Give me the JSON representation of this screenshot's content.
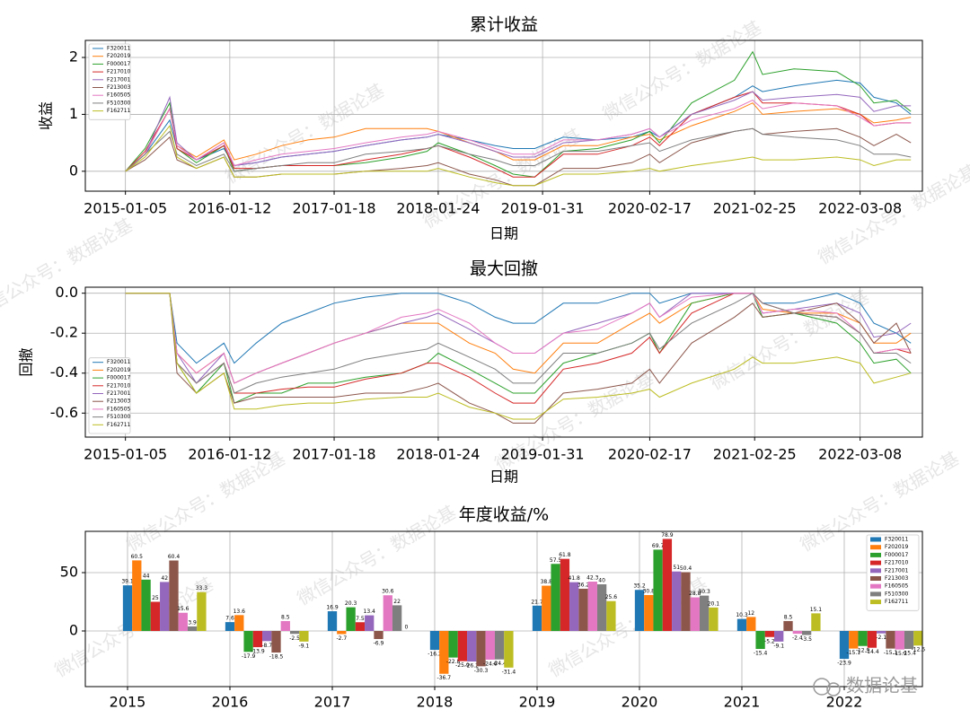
{
  "watermark": "微信公众号：数据论基",
  "logo_text": "数据论基",
  "chart_data": [
    {
      "type": "line",
      "title": "累计收益",
      "xlabel": "日期",
      "ylabel": "收益",
      "legend": "upper left",
      "grid": true,
      "x": [
        "2015-01-05",
        "2015-03-16",
        "2015-06-12",
        "2015-07-08",
        "2015-09-15",
        "2015-12-22",
        "2016-01-28",
        "2016-04-15",
        "2016-07-15",
        "2016-10-17",
        "2017-01-18",
        "2017-05-10",
        "2017-09-15",
        "2017-12-15",
        "2018-01-24",
        "2018-05-15",
        "2018-08-15",
        "2018-10-18",
        "2019-01-03",
        "2019-04-15",
        "2019-08-15",
        "2019-12-15",
        "2020-02-17",
        "2020-03-23",
        "2020-07-15",
        "2020-12-15",
        "2021-02-18",
        "2021-03-25",
        "2021-07-15",
        "2021-12-15",
        "2022-03-08",
        "2022-04-26",
        "2022-07-15",
        "2022-09-05"
      ],
      "xlim": [
        "2014-08-15",
        "2022-10-16"
      ],
      "xticks": [
        "2015-01-05",
        "2016-01-12",
        "2017-01-18",
        "2018-01-24",
        "2019-01-31",
        "2020-02-17",
        "2021-02-25",
        "2022-03-08"
      ],
      "ylim": [
        -0.35,
        2.3
      ],
      "yticks": [
        0,
        1,
        2
      ],
      "series": [
        {
          "name": "F320011",
          "color": "#1f77b4",
          "values": [
            0,
            0.3,
            0.9,
            0.4,
            0.2,
            0.4,
            0.1,
            0.15,
            0.25,
            0.3,
            0.35,
            0.45,
            0.55,
            0.6,
            0.65,
            0.55,
            0.45,
            0.4,
            0.4,
            0.6,
            0.55,
            0.6,
            0.7,
            0.6,
            1.0,
            1.3,
            1.5,
            1.4,
            1.5,
            1.6,
            1.55,
            1.3,
            1.2,
            1.0
          ]
        },
        {
          "name": "F202019",
          "color": "#ff7f0e",
          "values": [
            0,
            0.3,
            1.1,
            0.45,
            0.25,
            0.55,
            0.2,
            0.3,
            0.45,
            0.55,
            0.6,
            0.75,
            0.75,
            0.75,
            0.7,
            0.5,
            0.35,
            0.2,
            0.2,
            0.45,
            0.45,
            0.6,
            0.65,
            0.55,
            0.8,
            1.05,
            1.2,
            1.0,
            1.05,
            1.1,
            1.0,
            0.85,
            0.9,
            0.95
          ]
        },
        {
          "name": "F000017",
          "color": "#2ca02c",
          "values": [
            0,
            0.4,
            1.2,
            0.4,
            0.15,
            0.45,
            0,
            0.05,
            0.1,
            0.1,
            0.1,
            0.15,
            0.25,
            0.35,
            0.5,
            0.3,
            0.1,
            -0.05,
            -0.1,
            0.35,
            0.4,
            0.55,
            0.7,
            0.5,
            1.2,
            1.6,
            2.1,
            1.7,
            1.8,
            1.75,
            1.5,
            1.2,
            1.25,
            1.05
          ]
        },
        {
          "name": "F217010",
          "color": "#d62728",
          "values": [
            0,
            0.35,
            1.1,
            0.4,
            0.2,
            0.45,
            0.05,
            0.05,
            0.1,
            0.1,
            0.1,
            0.2,
            0.3,
            0.4,
            0.45,
            0.25,
            0.05,
            -0.1,
            -0.1,
            0.3,
            0.3,
            0.45,
            0.6,
            0.45,
            1.0,
            1.3,
            1.4,
            1.2,
            1.2,
            1.15,
            1.0,
            0.8,
            0.85,
            0.85
          ]
        },
        {
          "name": "F217001",
          "color": "#9467bd",
          "values": [
            0,
            0.3,
            1.3,
            0.5,
            0.2,
            0.5,
            0.1,
            0.15,
            0.25,
            0.3,
            0.35,
            0.45,
            0.55,
            0.6,
            0.65,
            0.5,
            0.35,
            0.25,
            0.25,
            0.5,
            0.55,
            0.65,
            0.75,
            0.6,
            1.0,
            1.25,
            1.4,
            1.25,
            1.3,
            1.35,
            1.3,
            1.05,
            1.15,
            1.15
          ]
        },
        {
          "name": "F213003",
          "color": "#8c564b",
          "values": [
            0,
            0.2,
            0.6,
            0.2,
            0.05,
            0.25,
            -0.1,
            -0.1,
            -0.05,
            -0.05,
            -0.05,
            0,
            0.05,
            0.1,
            0.15,
            -0.05,
            -0.15,
            -0.25,
            -0.25,
            0.05,
            0.05,
            0.15,
            0.3,
            0.15,
            0.5,
            0.7,
            0.75,
            0.65,
            0.7,
            0.75,
            0.6,
            0.45,
            0.65,
            0.5
          ]
        },
        {
          "name": "F160505",
          "color": "#e377c2",
          "values": [
            0,
            0.3,
            1.1,
            0.45,
            0.2,
            0.5,
            0.1,
            0.2,
            0.3,
            0.35,
            0.4,
            0.5,
            0.6,
            0.65,
            0.7,
            0.55,
            0.4,
            0.3,
            0.3,
            0.55,
            0.55,
            0.65,
            0.75,
            0.6,
            0.9,
            1.1,
            1.25,
            1.1,
            1.2,
            1.15,
            0.95,
            0.8,
            0.85,
            0.85
          ]
        },
        {
          "name": "F510300",
          "color": "#7f7f7f",
          "values": [
            0,
            0.3,
            0.7,
            0.3,
            0.1,
            0.3,
            0,
            0.05,
            0.1,
            0.15,
            0.15,
            0.3,
            0.35,
            0.4,
            0.45,
            0.3,
            0.2,
            0.1,
            0.1,
            0.35,
            0.35,
            0.45,
            0.5,
            0.35,
            0.55,
            0.7,
            0.75,
            0.65,
            0.6,
            0.55,
            0.45,
            0.3,
            0.3,
            0.25
          ]
        },
        {
          "name": "F162711",
          "color": "#bcbd22",
          "values": [
            0,
            0.25,
            0.8,
            0.25,
            0.05,
            0.25,
            -0.1,
            -0.1,
            -0.05,
            -0.05,
            -0.05,
            0,
            0,
            0,
            0.05,
            -0.1,
            -0.2,
            -0.25,
            -0.25,
            -0.05,
            -0.05,
            0,
            0.05,
            0,
            0.1,
            0.2,
            0.25,
            0.2,
            0.2,
            0.25,
            0.2,
            0.1,
            0.2,
            0.2
          ]
        }
      ]
    },
    {
      "type": "line",
      "title": "最大回撤",
      "xlabel": "日期",
      "ylabel": "回撤",
      "legend": "lower left",
      "grid": true,
      "x": [
        "2015-01-05",
        "2015-03-16",
        "2015-06-12",
        "2015-07-08",
        "2015-09-15",
        "2015-12-22",
        "2016-01-28",
        "2016-04-15",
        "2016-07-15",
        "2016-10-17",
        "2017-01-18",
        "2017-05-10",
        "2017-09-15",
        "2017-12-15",
        "2018-01-24",
        "2018-05-15",
        "2018-08-15",
        "2018-10-18",
        "2019-01-03",
        "2019-04-15",
        "2019-08-15",
        "2019-12-15",
        "2020-02-17",
        "2020-03-23",
        "2020-07-15",
        "2020-12-15",
        "2021-02-18",
        "2021-03-25",
        "2021-07-15",
        "2021-12-15",
        "2022-03-08",
        "2022-04-26",
        "2022-07-15",
        "2022-09-05"
      ],
      "xlim": [
        "2014-08-15",
        "2022-10-16"
      ],
      "xticks": [
        "2015-01-05",
        "2016-01-12",
        "2017-01-18",
        "2018-01-24",
        "2019-01-31",
        "2020-02-17",
        "2021-02-25",
        "2022-03-08"
      ],
      "ylim": [
        -0.72,
        0.03
      ],
      "yticks": [
        {
          "value": 0,
          "label": "0.0"
        },
        -0.2,
        -0.4,
        -0.6
      ],
      "series": [
        {
          "name": "F320011",
          "color": "#1f77b4",
          "values": [
            0,
            0,
            0,
            -0.25,
            -0.35,
            -0.25,
            -0.35,
            -0.25,
            -0.15,
            -0.1,
            -0.05,
            -0.02,
            0,
            0,
            0,
            -0.05,
            -0.12,
            -0.15,
            -0.15,
            -0.05,
            -0.05,
            0,
            0,
            -0.05,
            0,
            0,
            0,
            -0.05,
            -0.05,
            0,
            -0.05,
            -0.15,
            -0.2,
            -0.25
          ]
        },
        {
          "name": "F202019",
          "color": "#ff7f0e",
          "values": [
            0,
            0,
            0,
            -0.3,
            -0.4,
            -0.3,
            -0.45,
            -0.4,
            -0.35,
            -0.3,
            -0.25,
            -0.2,
            -0.15,
            -0.15,
            -0.15,
            -0.25,
            -0.3,
            -0.38,
            -0.4,
            -0.25,
            -0.25,
            -0.15,
            -0.1,
            -0.15,
            -0.05,
            0,
            0,
            -0.08,
            -0.1,
            -0.1,
            -0.15,
            -0.25,
            -0.25,
            -0.2
          ]
        },
        {
          "name": "F000017",
          "color": "#2ca02c",
          "values": [
            0,
            0,
            0,
            -0.35,
            -0.5,
            -0.35,
            -0.55,
            -0.5,
            -0.5,
            -0.45,
            -0.45,
            -0.42,
            -0.4,
            -0.35,
            -0.3,
            -0.38,
            -0.45,
            -0.5,
            -0.5,
            -0.35,
            -0.3,
            -0.25,
            -0.2,
            -0.3,
            -0.05,
            0,
            0,
            -0.12,
            -0.1,
            -0.15,
            -0.25,
            -0.35,
            -0.33,
            -0.4
          ]
        },
        {
          "name": "F217010",
          "color": "#d62728",
          "values": [
            0,
            0,
            0,
            -0.35,
            -0.45,
            -0.35,
            -0.5,
            -0.5,
            -0.48,
            -0.47,
            -0.47,
            -0.43,
            -0.4,
            -0.35,
            -0.35,
            -0.42,
            -0.5,
            -0.55,
            -0.55,
            -0.38,
            -0.35,
            -0.3,
            -0.22,
            -0.3,
            -0.1,
            0,
            0,
            -0.05,
            -0.1,
            -0.12,
            -0.2,
            -0.3,
            -0.28,
            -0.3
          ]
        },
        {
          "name": "F217001",
          "color": "#9467bd",
          "values": [
            0,
            0,
            0,
            -0.3,
            -0.45,
            -0.3,
            -0.45,
            -0.4,
            -0.35,
            -0.3,
            -0.25,
            -0.2,
            -0.15,
            -0.12,
            -0.1,
            -0.18,
            -0.25,
            -0.3,
            -0.3,
            -0.2,
            -0.15,
            -0.1,
            -0.05,
            -0.12,
            0,
            0,
            0,
            -0.1,
            -0.08,
            -0.05,
            -0.1,
            -0.22,
            -0.2,
            -0.15
          ]
        },
        {
          "name": "F213003",
          "color": "#8c564b",
          "values": [
            0,
            0,
            0,
            -0.4,
            -0.5,
            -0.4,
            -0.55,
            -0.52,
            -0.52,
            -0.52,
            -0.52,
            -0.5,
            -0.5,
            -0.47,
            -0.45,
            -0.55,
            -0.6,
            -0.65,
            -0.65,
            -0.5,
            -0.48,
            -0.45,
            -0.38,
            -0.45,
            -0.25,
            -0.12,
            -0.05,
            -0.12,
            -0.1,
            -0.05,
            -0.15,
            -0.25,
            -0.15,
            -0.3
          ]
        },
        {
          "name": "F160505",
          "color": "#e377c2",
          "values": [
            0,
            0,
            0,
            -0.3,
            -0.4,
            -0.3,
            -0.45,
            -0.4,
            -0.35,
            -0.3,
            -0.25,
            -0.2,
            -0.12,
            -0.1,
            -0.08,
            -0.15,
            -0.25,
            -0.3,
            -0.3,
            -0.2,
            -0.18,
            -0.1,
            -0.05,
            -0.12,
            -0.02,
            0,
            0,
            -0.1,
            -0.08,
            -0.1,
            -0.2,
            -0.3,
            -0.28,
            -0.28
          ]
        },
        {
          "name": "F510300",
          "color": "#7f7f7f",
          "values": [
            0,
            0,
            0,
            -0.35,
            -0.45,
            -0.35,
            -0.5,
            -0.45,
            -0.42,
            -0.4,
            -0.38,
            -0.33,
            -0.3,
            -0.28,
            -0.25,
            -0.32,
            -0.38,
            -0.45,
            -0.45,
            -0.3,
            -0.3,
            -0.25,
            -0.2,
            -0.28,
            -0.15,
            -0.05,
            0,
            -0.05,
            -0.1,
            -0.12,
            -0.2,
            -0.3,
            -0.3,
            -0.35
          ]
        },
        {
          "name": "F162711",
          "color": "#bcbd22",
          "values": [
            0,
            0,
            0,
            -0.35,
            -0.5,
            -0.4,
            -0.58,
            -0.58,
            -0.56,
            -0.55,
            -0.55,
            -0.53,
            -0.52,
            -0.52,
            -0.5,
            -0.57,
            -0.6,
            -0.63,
            -0.63,
            -0.53,
            -0.52,
            -0.5,
            -0.48,
            -0.52,
            -0.45,
            -0.38,
            -0.32,
            -0.35,
            -0.35,
            -0.32,
            -0.35,
            -0.45,
            -0.42,
            -0.4
          ]
        }
      ]
    },
    {
      "type": "bar",
      "title": "年度收益/%",
      "legend": "upper right",
      "grid": true,
      "categories": [
        "2015",
        "2016",
        "2017",
        "2018",
        "2019",
        "2020",
        "2021",
        "2022"
      ],
      "ylim": [
        -47.7,
        85.4
      ],
      "yticks": [
        0,
        50
      ],
      "series": [
        {
          "name": "F320011",
          "color": "#1f77b4",
          "values": [
            39.1,
            7.6,
            16.9,
            -16.2,
            21.7,
            35.2,
            10.3,
            -23.9
          ]
        },
        {
          "name": "F202019",
          "color": "#ff7f0e",
          "values": [
            60.5,
            13.6,
            -2.7,
            -36.7,
            38.8,
            30.8,
            12,
            -15.1
          ]
        },
        {
          "name": "F000017",
          "color": "#2ca02c",
          "values": [
            44,
            -17.9,
            20.3,
            -22.8,
            57.5,
            69.7,
            -15.4,
            -12.9
          ]
        },
        {
          "name": "F217010",
          "color": "#d62728",
          "values": [
            25,
            -13.9,
            7.5,
            -25.9,
            61.8,
            78.9,
            -5.2,
            -14.4
          ]
        },
        {
          "name": "F217001",
          "color": "#9467bd",
          "values": [
            42,
            -8.7,
            13.4,
            -26.2,
            41.8,
            51,
            -9.1,
            -2.1
          ]
        },
        {
          "name": "F213003",
          "color": "#8c564b",
          "values": [
            60.4,
            -18.5,
            -6.9,
            -30.3,
            36.2,
            50.4,
            8.5,
            -15.1
          ]
        },
        {
          "name": "F160505",
          "color": "#e377c2",
          "values": [
            15.6,
            8.5,
            30.6,
            -24.6,
            42.3,
            28.8,
            -2.4,
            -15.9
          ]
        },
        {
          "name": "F510300",
          "color": "#7f7f7f",
          "values": [
            3.9,
            -2.5,
            22,
            -24.4,
            40,
            30.3,
            -3.5,
            -15.4
          ]
        },
        {
          "name": "F162711",
          "color": "#bcbd22",
          "values": [
            33.3,
            -9.1,
            0,
            -31.4,
            25.6,
            20.1,
            15.1,
            -12.5
          ]
        }
      ]
    }
  ]
}
